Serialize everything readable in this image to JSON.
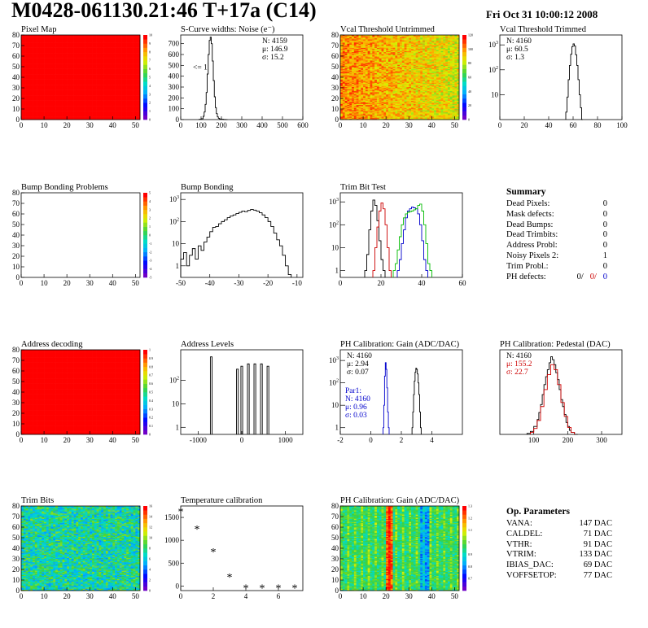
{
  "header": {
    "title": "M0428-061130.21:46 T+17a (C14)",
    "date": "Fri Oct 31 10:00:12 2008"
  },
  "chart_data": [
    {
      "id": "pixel-map",
      "type": "heatmap",
      "title": "Pixel Map",
      "xlim": [
        0,
        52
      ],
      "ylim": [
        0,
        80
      ],
      "xticks": [
        0,
        10,
        20,
        30,
        40,
        50
      ],
      "yticks": [
        0,
        10,
        20,
        30,
        40,
        50,
        60,
        70,
        80
      ],
      "palette": "rainbow",
      "pattern": "uniform",
      "level": 1.0,
      "colorbar": {
        "min": 0,
        "max": 10,
        "ticks": [
          0,
          1,
          2,
          3,
          4,
          5,
          6,
          7,
          8,
          9,
          10
        ]
      }
    },
    {
      "id": "scurve-widths",
      "type": "histogram",
      "title": "S-Curve widths: Noise (e⁻)",
      "xlim": [
        0,
        600
      ],
      "ylim": [
        0,
        780
      ],
      "log": false,
      "xticks": [
        0,
        100,
        200,
        300,
        400,
        500,
        600
      ],
      "yticks": [
        0,
        100,
        200,
        300,
        400,
        500,
        600,
        700
      ],
      "annotation": {
        "text": "<= 1",
        "x": 60,
        "y": 460
      },
      "series": [
        {
          "color": "#000000",
          "x": [
            90,
            100,
            110,
            115,
            120,
            125,
            130,
            135,
            140,
            145,
            150,
            155,
            160,
            165,
            170,
            175,
            180,
            185,
            190,
            200,
            210,
            220
          ],
          "y": [
            2,
            8,
            30,
            70,
            140,
            250,
            420,
            600,
            730,
            760,
            700,
            540,
            360,
            210,
            110,
            55,
            25,
            12,
            6,
            3,
            1,
            0
          ]
        }
      ],
      "stats": [
        {
          "text": "N: 4159",
          "color": "#000000"
        },
        {
          "text": "μ: 146.9",
          "color": "#000000"
        },
        {
          "text": "σ: 15.2",
          "color": "#000000"
        }
      ]
    },
    {
      "id": "vcal-untrimmed",
      "type": "heatmap",
      "title": "Vcal Threshold Untrimmed",
      "xlim": [
        0,
        52
      ],
      "ylim": [
        0,
        80
      ],
      "xticks": [
        0,
        10,
        20,
        30,
        40,
        50
      ],
      "yticks": [
        0,
        10,
        20,
        30,
        40,
        50,
        60,
        70,
        80
      ],
      "palette": "rainbow",
      "pattern": "noisy-gradient",
      "level": 0.78,
      "colorbar": {
        "min": 0,
        "max": 120,
        "ticks": [
          0,
          20,
          40,
          60,
          80,
          100,
          120
        ]
      }
    },
    {
      "id": "vcal-trimmed",
      "type": "histogram",
      "title": "Vcal Threshold Trimmed",
      "xlim": [
        0,
        100
      ],
      "ylim": [
        1,
        2500
      ],
      "log": true,
      "xticks": [
        0,
        20,
        40,
        60,
        80,
        100
      ],
      "ylogticks": [
        10,
        100,
        1000
      ],
      "series": [
        {
          "color": "#000000",
          "x": [
            54,
            55,
            56,
            57,
            58,
            59,
            60,
            61,
            62,
            63,
            64,
            65,
            66,
            67
          ],
          "y": [
            2,
            8,
            40,
            150,
            420,
            850,
            1100,
            900,
            400,
            150,
            40,
            10,
            3,
            1
          ]
        }
      ],
      "stats": [
        {
          "text": "N: 4160",
          "color": "#000000"
        },
        {
          "text": "μ: 60.5",
          "color": "#000000"
        },
        {
          "text": "σ: 1.3",
          "color": "#000000"
        }
      ]
    },
    {
      "id": "bump-problems",
      "type": "heatmap",
      "title": "Bump Bonding Problems",
      "xlim": [
        0,
        52
      ],
      "ylim": [
        0,
        80
      ],
      "xticks": [
        0,
        10,
        20,
        30,
        40,
        50
      ],
      "yticks": [
        0,
        10,
        20,
        30,
        40,
        50,
        60,
        70,
        80
      ],
      "palette": "rainbow",
      "pattern": "empty",
      "level": 0,
      "colorbar": {
        "min": -5,
        "max": 5,
        "ticks": [
          -5,
          -4,
          -3,
          -2,
          -1,
          0,
          1,
          2,
          3,
          4,
          5
        ]
      }
    },
    {
      "id": "bump-bonding",
      "type": "histogram",
      "title": "Bump Bonding",
      "xlim": [
        -50,
        -8
      ],
      "ylim": [
        0.3,
        2000
      ],
      "log": true,
      "xticks": [
        -50,
        -40,
        -30,
        -20,
        -10
      ],
      "ylogticks": [
        1,
        10,
        100,
        1000
      ],
      "series": [
        {
          "color": "#000000",
          "x": [
            -50,
            -49,
            -48,
            -47,
            -46,
            -45,
            -44,
            -43,
            -42,
            -41,
            -40,
            -39,
            -38,
            -37,
            -36,
            -35,
            -34,
            -33,
            -32,
            -31,
            -30,
            -29,
            -28,
            -27,
            -26,
            -25,
            -24,
            -23,
            -22,
            -21,
            -20,
            -19,
            -18,
            -17,
            -16,
            -15,
            -14,
            -13
          ],
          "y": [
            2,
            4,
            1,
            3,
            6,
            2,
            8,
            5,
            12,
            20,
            35,
            55,
            60,
            80,
            100,
            120,
            150,
            180,
            200,
            230,
            260,
            300,
            280,
            320,
            350,
            330,
            300,
            250,
            200,
            150,
            100,
            60,
            30,
            15,
            8,
            3,
            1,
            0.4
          ]
        }
      ]
    },
    {
      "id": "trim-bit-test",
      "type": "histogram",
      "title": "Trim Bit Test",
      "xlim": [
        0,
        60
      ],
      "ylim": [
        0.5,
        2500
      ],
      "log": true,
      "xticks": [
        0,
        20,
        40,
        60
      ],
      "ylogticks": [
        1,
        10,
        100,
        1000
      ],
      "series": [
        {
          "color": "#000000",
          "x": [
            12,
            13,
            14,
            15,
            16,
            17,
            18,
            19,
            20,
            21
          ],
          "y": [
            1,
            5,
            60,
            400,
            1200,
            700,
            150,
            20,
            3,
            1
          ]
        },
        {
          "color": "#cc0000",
          "x": [
            16,
            17,
            18,
            19,
            20,
            21,
            22,
            23,
            24
          ],
          "y": [
            1,
            10,
            80,
            400,
            900,
            500,
            100,
            10,
            1
          ]
        },
        {
          "color": "#0000cc",
          "x": [
            28,
            29,
            30,
            31,
            32,
            33,
            34,
            35,
            36,
            37,
            38,
            39,
            40,
            41,
            42
          ],
          "y": [
            1,
            3,
            15,
            60,
            200,
            400,
            500,
            600,
            550,
            500,
            300,
            100,
            20,
            3,
            1
          ]
        },
        {
          "color": "#00bb00",
          "x": [
            26,
            27,
            28,
            29,
            30,
            31,
            32,
            33,
            34,
            35,
            36,
            37,
            38,
            39,
            40,
            41,
            42,
            43,
            44
          ],
          "y": [
            1,
            2,
            8,
            30,
            100,
            200,
            300,
            350,
            380,
            400,
            450,
            500,
            700,
            800,
            400,
            100,
            15,
            2,
            1
          ]
        }
      ]
    },
    {
      "id": "address-decoding",
      "type": "heatmap",
      "title": "Address decoding",
      "xlim": [
        0,
        52
      ],
      "ylim": [
        0,
        80
      ],
      "xticks": [
        0,
        10,
        20,
        30,
        40,
        50
      ],
      "yticks": [
        0,
        10,
        20,
        30,
        40,
        50,
        60,
        70,
        80
      ],
      "palette": "rainbow",
      "pattern": "uniform",
      "level": 1.0,
      "colorbar": {
        "min": 0,
        "max": 1,
        "ticks": [
          0,
          0.1,
          0.2,
          0.3,
          0.4,
          0.5,
          0.6,
          0.7,
          0.8,
          0.9,
          1
        ]
      }
    },
    {
      "id": "address-levels",
      "type": "histogram",
      "title": "Address Levels",
      "xlim": [
        -1400,
        1400
      ],
      "ylim": [
        0.5,
        2000
      ],
      "log": true,
      "xticks": [
        -1000,
        0,
        1000
      ],
      "ylogticks": [
        1,
        10,
        100
      ],
      "spikes": {
        "color": "#000000",
        "x": [
          -700,
          -100,
          0,
          150,
          300,
          450,
          600
        ],
        "y": [
          1000,
          300,
          400,
          500,
          500,
          500,
          400
        ],
        "width": 40
      }
    },
    {
      "id": "ph-gain",
      "type": "histogram",
      "title": "PH Calibration: Gain (ADC/DAC)",
      "xlim": [
        -2,
        6
      ],
      "ylim": [
        0.5,
        3000
      ],
      "log": true,
      "xticks": [
        -2,
        0,
        2,
        4
      ],
      "ylogticks": [
        1,
        10,
        100,
        1000
      ],
      "series": [
        {
          "color": "#0000cc",
          "x": [
            0.8,
            0.85,
            0.9,
            0.95,
            1.0,
            1.05,
            1.1,
            1.15
          ],
          "y": [
            1,
            10,
            200,
            800,
            400,
            60,
            5,
            1
          ]
        },
        {
          "color": "#000000",
          "x": [
            2.7,
            2.75,
            2.8,
            2.85,
            2.9,
            2.95,
            3.0,
            3.05,
            3.1,
            3.15,
            3.2,
            3.25
          ],
          "y": [
            1,
            5,
            30,
            120,
            300,
            450,
            400,
            250,
            100,
            30,
            5,
            1
          ]
        }
      ],
      "stats": [
        {
          "text": "N: 4160",
          "color": "#000000"
        },
        {
          "text": "μ: 2.94",
          "color": "#000000"
        },
        {
          "text": "σ: 0.07",
          "color": "#000000"
        }
      ],
      "stats2": [
        {
          "text": "Par1:",
          "color": "#0000cc"
        },
        {
          "text": "N: 4160",
          "color": "#0000cc"
        },
        {
          "text": "μ: 0.96",
          "color": "#0000cc"
        },
        {
          "text": "σ: 0.03",
          "color": "#0000cc"
        }
      ]
    },
    {
      "id": "ph-pedestal",
      "type": "histogram",
      "title": "PH Calibration: Pedestal (DAC)",
      "xlim": [
        0,
        360
      ],
      "ylim": [
        0,
        85
      ],
      "log": false,
      "xticks": [
        100,
        200,
        300
      ],
      "series": [
        {
          "color": "#000000",
          "x": [
            80,
            90,
            100,
            110,
            115,
            120,
            125,
            130,
            135,
            140,
            145,
            150,
            155,
            160,
            165,
            170,
            175,
            180,
            185,
            190,
            195,
            200,
            205,
            210,
            220
          ],
          "y": [
            1,
            3,
            8,
            15,
            22,
            30,
            40,
            50,
            58,
            65,
            72,
            78,
            75,
            70,
            62,
            55,
            45,
            35,
            28,
            20,
            12,
            8,
            4,
            2,
            0
          ]
        },
        {
          "color": "#cc0000",
          "x": [
            90,
            100,
            110,
            120,
            130,
            140,
            150,
            160,
            170,
            180,
            190,
            200,
            210
          ],
          "y": [
            2,
            6,
            14,
            28,
            45,
            60,
            70,
            65,
            50,
            32,
            18,
            7,
            2
          ]
        }
      ],
      "stats": [
        {
          "text": "N: 4160",
          "color": "#000000"
        },
        {
          "text": "μ: 155.2",
          "color": "#cc0000"
        },
        {
          "text": "σ: 22.7",
          "color": "#cc0000"
        }
      ]
    },
    {
      "id": "trim-bits",
      "type": "heatmap",
      "title": "Trim Bits",
      "xlim": [
        0,
        52
      ],
      "ylim": [
        0,
        80
      ],
      "xticks": [
        0,
        10,
        20,
        30,
        40,
        50
      ],
      "yticks": [
        0,
        10,
        20,
        30,
        40,
        50,
        60,
        70,
        80
      ],
      "palette": "rainbow",
      "pattern": "noisy-mid",
      "level": 0.45,
      "colorbar": {
        "min": 0,
        "max": 16,
        "ticks": [
          0,
          2,
          4,
          6,
          8,
          10,
          12,
          14,
          16
        ]
      }
    },
    {
      "id": "temperature-calibration",
      "type": "scatter",
      "title": "Temperature calibration",
      "xlim": [
        0,
        7.5
      ],
      "ylim": [
        -100,
        1750
      ],
      "xticks": [
        0,
        2,
        4,
        6
      ],
      "yticks": [
        0,
        500,
        1000,
        1500
      ],
      "x": [
        0,
        1,
        2,
        3,
        4,
        5,
        6,
        7
      ],
      "y": [
        1630,
        1250,
        750,
        200,
        -40,
        -40,
        -40,
        -40
      ]
    },
    {
      "id": "ph-gain-map",
      "type": "heatmap",
      "title": "PH Calibration: Gain (ADC/DAC)",
      "xlim": [
        0,
        52
      ],
      "ylim": [
        0,
        80
      ],
      "xticks": [
        0,
        10,
        20,
        30,
        40,
        50
      ],
      "yticks": [
        0,
        10,
        20,
        30,
        40,
        50,
        60,
        70,
        80
      ],
      "palette": "rainbow",
      "pattern": "columns",
      "level": 0.5,
      "colorbar": {
        "min": 0.6,
        "max": 1.3,
        "ticks": [
          0.7,
          0.8,
          0.9,
          1.0,
          1.1,
          1.2,
          1.3
        ]
      }
    }
  ],
  "summary": {
    "title": "Summary",
    "rows": [
      {
        "label": "Dead Pixels:",
        "value": "0"
      },
      {
        "label": "Mask defects:",
        "value": "0"
      },
      {
        "label": "Dead Bumps:",
        "value": "0"
      },
      {
        "label": "Dead Trimbits:",
        "value": "0"
      },
      {
        "label": "Address Probl:",
        "value": "0"
      },
      {
        "label": "Noisy Pixels 2:",
        "value": "1"
      },
      {
        "label": "Trim Probl.:",
        "value": "0"
      }
    ],
    "ph_defects": {
      "label": "PH defects:",
      "v1": "0/",
      "v2": "0/",
      "v3": "0",
      "c1": "#000000",
      "c2": "#cc0000",
      "c3": "#0000cc"
    }
  },
  "op_parameters": {
    "title": "Op. Parameters",
    "rows": [
      {
        "label": "VANA:",
        "value": "147 DAC"
      },
      {
        "label": "CALDEL:",
        "value": "71 DAC"
      },
      {
        "label": "VTHR:",
        "value": "91 DAC"
      },
      {
        "label": "VTRIM:",
        "value": "133 DAC"
      },
      {
        "label": "IBIAS_DAC:",
        "value": "69 DAC"
      },
      {
        "label": "VOFFSETOP:",
        "value": "77 DAC"
      }
    ]
  }
}
